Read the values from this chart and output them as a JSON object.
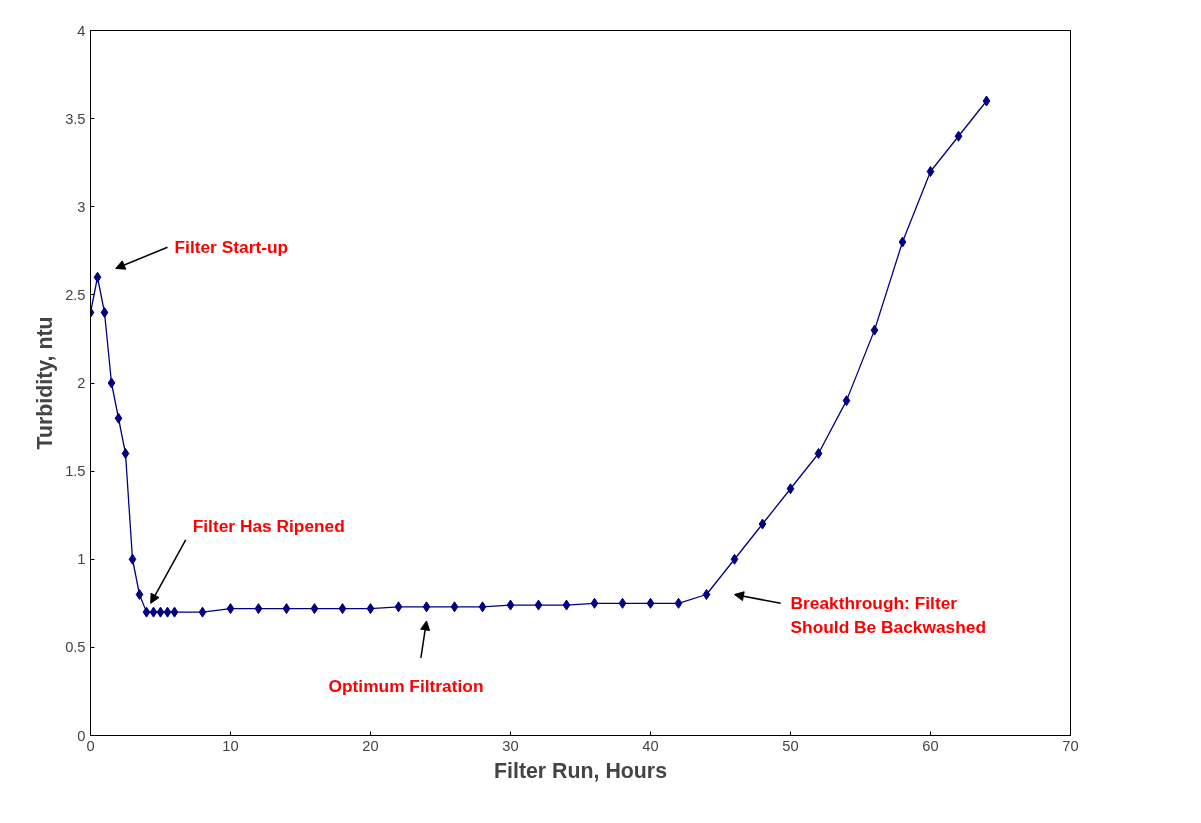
{
  "chart_data": {
    "type": "line",
    "xlabel": "Filter Run, Hours",
    "ylabel": "Turbidity, ntu",
    "x": [
      0,
      0.5,
      1,
      1.5,
      2,
      2.5,
      3,
      3.5,
      4,
      4.5,
      5,
      5.5,
      6,
      8,
      10,
      12,
      14,
      16,
      18,
      20,
      22,
      24,
      26,
      28,
      30,
      32,
      34,
      36,
      38,
      40,
      42,
      44,
      46,
      48,
      50,
      52,
      54,
      56,
      58,
      60,
      62,
      64
    ],
    "series": [
      {
        "color": "#000080",
        "values": [
          2.4,
          2.6,
          2.4,
          2.0,
          1.8,
          1.6,
          1.0,
          0.8,
          0.7,
          0.7,
          0.7,
          0.7,
          0.7,
          0.7,
          0.72,
          0.72,
          0.72,
          0.72,
          0.72,
          0.72,
          0.73,
          0.73,
          0.73,
          0.73,
          0.74,
          0.74,
          0.74,
          0.75,
          0.75,
          0.75,
          0.75,
          0.8,
          1.0,
          1.2,
          1.4,
          1.6,
          1.9,
          2.3,
          2.8,
          3.2,
          3.4,
          3.6
        ]
      }
    ],
    "xlim": [
      0,
      70
    ],
    "ylim": [
      0,
      4
    ],
    "xticks": [
      0,
      10,
      20,
      30,
      40,
      50,
      60,
      70
    ],
    "yticks": [
      0,
      0.5,
      1,
      1.5,
      2,
      2.5,
      3,
      3.5,
      4
    ],
    "marker": "diamond",
    "line_style": "solid",
    "grid": false,
    "annotations": [
      "Filter Start-up",
      "Filter Has Ripened",
      "Optimum Filtration",
      "Breakthrough:  Filter\nShould Be Backwashed"
    ]
  }
}
